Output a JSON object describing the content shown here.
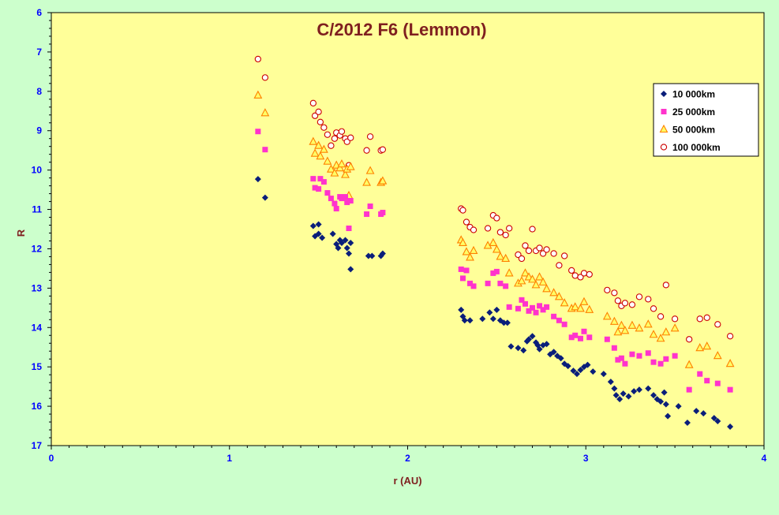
{
  "chart_data": {
    "type": "scatter",
    "title": "C/2012 F6 (Lemmon)",
    "xlabel": "r (AU)",
    "ylabel": "R",
    "xlim": [
      0,
      4
    ],
    "ylim": [
      6,
      17
    ],
    "y_inverted": true,
    "x_ticks": [
      "0",
      "1",
      "2",
      "3",
      "4"
    ],
    "y_ticks": [
      "6",
      "7",
      "8",
      "9",
      "10",
      "11",
      "12",
      "13",
      "14",
      "15",
      "16",
      "17"
    ],
    "grid": false,
    "legend_position": "top-right",
    "colors": {
      "background": "#ccffcc",
      "plot_area": "#ffff99",
      "title": "#7f1f1f",
      "axis_labels": "#7f1f1f",
      "tick_labels": "#0000ff"
    },
    "series": [
      {
        "name": "10 000km",
        "marker": "diamond",
        "color": "#0a1e7a",
        "points": [
          [
            1.16,
            10.23
          ],
          [
            1.2,
            10.7
          ],
          [
            1.47,
            11.42
          ],
          [
            1.48,
            11.68
          ],
          [
            1.5,
            11.38
          ],
          [
            1.5,
            11.62
          ],
          [
            1.52,
            11.72
          ],
          [
            1.58,
            11.62
          ],
          [
            1.6,
            11.88
          ],
          [
            1.61,
            11.98
          ],
          [
            1.62,
            11.78
          ],
          [
            1.63,
            11.85
          ],
          [
            1.65,
            11.78
          ],
          [
            1.66,
            11.98
          ],
          [
            1.67,
            12.12
          ],
          [
            1.68,
            11.85
          ],
          [
            1.68,
            12.52
          ],
          [
            1.78,
            12.18
          ],
          [
            1.8,
            12.18
          ],
          [
            1.85,
            12.18
          ],
          [
            1.86,
            12.12
          ],
          [
            2.3,
            13.55
          ],
          [
            2.31,
            13.72
          ],
          [
            2.32,
            13.82
          ],
          [
            2.35,
            13.82
          ],
          [
            2.42,
            13.78
          ],
          [
            2.46,
            13.62
          ],
          [
            2.48,
            13.78
          ],
          [
            2.5,
            13.55
          ],
          [
            2.52,
            13.82
          ],
          [
            2.54,
            13.88
          ],
          [
            2.56,
            13.88
          ],
          [
            2.58,
            14.48
          ],
          [
            2.62,
            14.52
          ],
          [
            2.65,
            14.58
          ],
          [
            2.67,
            14.35
          ],
          [
            2.68,
            14.3
          ],
          [
            2.7,
            14.22
          ],
          [
            2.72,
            14.38
          ],
          [
            2.73,
            14.45
          ],
          [
            2.74,
            14.55
          ],
          [
            2.76,
            14.45
          ],
          [
            2.78,
            14.42
          ],
          [
            2.8,
            14.68
          ],
          [
            2.82,
            14.62
          ],
          [
            2.84,
            14.72
          ],
          [
            2.86,
            14.78
          ],
          [
            2.88,
            14.92
          ],
          [
            2.9,
            14.98
          ],
          [
            2.93,
            15.1
          ],
          [
            2.95,
            15.18
          ],
          [
            2.97,
            15.08
          ],
          [
            2.99,
            15.0
          ],
          [
            3.01,
            14.95
          ],
          [
            3.04,
            15.12
          ],
          [
            3.1,
            15.18
          ],
          [
            3.14,
            15.38
          ],
          [
            3.16,
            15.55
          ],
          [
            3.17,
            15.72
          ],
          [
            3.19,
            15.82
          ],
          [
            3.21,
            15.68
          ],
          [
            3.24,
            15.75
          ],
          [
            3.27,
            15.62
          ],
          [
            3.3,
            15.58
          ],
          [
            3.35,
            15.55
          ],
          [
            3.38,
            15.72
          ],
          [
            3.4,
            15.82
          ],
          [
            3.42,
            15.88
          ],
          [
            3.44,
            15.65
          ],
          [
            3.45,
            15.95
          ],
          [
            3.46,
            16.25
          ],
          [
            3.52,
            16.0
          ],
          [
            3.57,
            16.42
          ],
          [
            3.62,
            16.12
          ],
          [
            3.66,
            16.18
          ],
          [
            3.72,
            16.3
          ],
          [
            3.74,
            16.38
          ],
          [
            3.81,
            16.52
          ]
        ]
      },
      {
        "name": "25 000km",
        "marker": "square",
        "color": "#ff33cc",
        "points": [
          [
            1.16,
            9.02
          ],
          [
            1.2,
            9.48
          ],
          [
            1.47,
            10.22
          ],
          [
            1.48,
            10.45
          ],
          [
            1.5,
            10.48
          ],
          [
            1.51,
            10.22
          ],
          [
            1.53,
            10.3
          ],
          [
            1.55,
            10.58
          ],
          [
            1.57,
            10.72
          ],
          [
            1.59,
            10.85
          ],
          [
            1.6,
            10.98
          ],
          [
            1.62,
            10.68
          ],
          [
            1.63,
            10.72
          ],
          [
            1.65,
            10.68
          ],
          [
            1.66,
            10.82
          ],
          [
            1.67,
            11.48
          ],
          [
            1.68,
            10.78
          ],
          [
            1.77,
            11.12
          ],
          [
            1.79,
            10.92
          ],
          [
            1.85,
            11.12
          ],
          [
            1.86,
            11.08
          ],
          [
            2.3,
            12.52
          ],
          [
            2.31,
            12.75
          ],
          [
            2.33,
            12.55
          ],
          [
            2.35,
            12.88
          ],
          [
            2.37,
            12.95
          ],
          [
            2.45,
            12.88
          ],
          [
            2.48,
            12.62
          ],
          [
            2.5,
            12.58
          ],
          [
            2.52,
            12.88
          ],
          [
            2.55,
            12.95
          ],
          [
            2.57,
            13.48
          ],
          [
            2.62,
            13.52
          ],
          [
            2.64,
            13.3
          ],
          [
            2.66,
            13.4
          ],
          [
            2.68,
            13.58
          ],
          [
            2.7,
            13.5
          ],
          [
            2.72,
            13.62
          ],
          [
            2.74,
            13.45
          ],
          [
            2.76,
            13.55
          ],
          [
            2.78,
            13.48
          ],
          [
            2.82,
            13.72
          ],
          [
            2.85,
            13.82
          ],
          [
            2.88,
            13.92
          ],
          [
            2.92,
            14.25
          ],
          [
            2.94,
            14.2
          ],
          [
            2.97,
            14.28
          ],
          [
            2.99,
            14.1
          ],
          [
            3.02,
            14.25
          ],
          [
            3.12,
            14.3
          ],
          [
            3.16,
            14.52
          ],
          [
            3.18,
            14.82
          ],
          [
            3.2,
            14.78
          ],
          [
            3.22,
            14.92
          ],
          [
            3.26,
            14.68
          ],
          [
            3.3,
            14.72
          ],
          [
            3.35,
            14.65
          ],
          [
            3.38,
            14.88
          ],
          [
            3.42,
            14.92
          ],
          [
            3.45,
            14.8
          ],
          [
            3.5,
            14.72
          ],
          [
            3.58,
            15.58
          ],
          [
            3.64,
            15.18
          ],
          [
            3.68,
            15.35
          ],
          [
            3.74,
            15.42
          ],
          [
            3.81,
            15.58
          ]
        ]
      },
      {
        "name": "50 000km",
        "marker": "triangle",
        "color": "#ff8000",
        "points": [
          [
            1.16,
            8.1
          ],
          [
            1.2,
            8.55
          ],
          [
            1.47,
            9.28
          ],
          [
            1.48,
            9.58
          ],
          [
            1.5,
            9.38
          ],
          [
            1.51,
            9.65
          ],
          [
            1.53,
            9.48
          ],
          [
            1.55,
            9.78
          ],
          [
            1.57,
            9.98
          ],
          [
            1.59,
            10.08
          ],
          [
            1.6,
            9.88
          ],
          [
            1.62,
            9.95
          ],
          [
            1.63,
            9.85
          ],
          [
            1.65,
            10.12
          ],
          [
            1.66,
            9.98
          ],
          [
            1.67,
            10.65
          ],
          [
            1.68,
            9.92
          ],
          [
            1.77,
            10.32
          ],
          [
            1.79,
            10.02
          ],
          [
            1.85,
            10.32
          ],
          [
            1.86,
            10.28
          ],
          [
            2.3,
            11.78
          ],
          [
            2.31,
            11.85
          ],
          [
            2.33,
            12.08
          ],
          [
            2.35,
            12.22
          ],
          [
            2.37,
            12.05
          ],
          [
            2.45,
            11.92
          ],
          [
            2.48,
            11.85
          ],
          [
            2.5,
            12.02
          ],
          [
            2.52,
            12.2
          ],
          [
            2.55,
            12.25
          ],
          [
            2.57,
            12.62
          ],
          [
            2.62,
            12.88
          ],
          [
            2.64,
            12.82
          ],
          [
            2.66,
            12.62
          ],
          [
            2.68,
            12.72
          ],
          [
            2.7,
            12.78
          ],
          [
            2.72,
            12.92
          ],
          [
            2.74,
            12.72
          ],
          [
            2.76,
            12.85
          ],
          [
            2.78,
            13.02
          ],
          [
            2.82,
            13.12
          ],
          [
            2.85,
            13.22
          ],
          [
            2.88,
            13.38
          ],
          [
            2.92,
            13.52
          ],
          [
            2.94,
            13.48
          ],
          [
            2.97,
            13.52
          ],
          [
            2.99,
            13.35
          ],
          [
            3.02,
            13.55
          ],
          [
            3.12,
            13.72
          ],
          [
            3.16,
            13.85
          ],
          [
            3.18,
            14.12
          ],
          [
            3.2,
            13.95
          ],
          [
            3.22,
            14.08
          ],
          [
            3.26,
            13.95
          ],
          [
            3.3,
            14.02
          ],
          [
            3.35,
            13.92
          ],
          [
            3.38,
            14.18
          ],
          [
            3.42,
            14.28
          ],
          [
            3.45,
            14.12
          ],
          [
            3.5,
            14.02
          ],
          [
            3.58,
            14.95
          ],
          [
            3.64,
            14.52
          ],
          [
            3.68,
            14.48
          ],
          [
            3.74,
            14.72
          ],
          [
            3.81,
            14.92
          ]
        ]
      },
      {
        "name": "100 000km",
        "marker": "circle",
        "color": "#cc0000",
        "points": [
          [
            1.16,
            7.18
          ],
          [
            1.2,
            7.65
          ],
          [
            1.47,
            8.3
          ],
          [
            1.48,
            8.62
          ],
          [
            1.5,
            8.52
          ],
          [
            1.51,
            8.78
          ],
          [
            1.53,
            8.92
          ],
          [
            1.55,
            9.1
          ],
          [
            1.57,
            9.38
          ],
          [
            1.59,
            9.2
          ],
          [
            1.6,
            9.05
          ],
          [
            1.62,
            9.12
          ],
          [
            1.63,
            9.02
          ],
          [
            1.65,
            9.2
          ],
          [
            1.66,
            9.28
          ],
          [
            1.67,
            9.88
          ],
          [
            1.68,
            9.18
          ],
          [
            1.77,
            9.5
          ],
          [
            1.79,
            9.15
          ],
          [
            1.85,
            9.5
          ],
          [
            1.86,
            9.48
          ],
          [
            2.3,
            10.98
          ],
          [
            2.31,
            11.02
          ],
          [
            2.33,
            11.32
          ],
          [
            2.35,
            11.45
          ],
          [
            2.37,
            11.52
          ],
          [
            2.45,
            11.48
          ],
          [
            2.48,
            11.15
          ],
          [
            2.5,
            11.22
          ],
          [
            2.52,
            11.58
          ],
          [
            2.55,
            11.65
          ],
          [
            2.57,
            11.48
          ],
          [
            2.62,
            12.15
          ],
          [
            2.64,
            12.25
          ],
          [
            2.66,
            11.92
          ],
          [
            2.68,
            12.05
          ],
          [
            2.7,
            11.5
          ],
          [
            2.72,
            12.05
          ],
          [
            2.74,
            11.98
          ],
          [
            2.76,
            12.12
          ],
          [
            2.78,
            12.02
          ],
          [
            2.82,
            12.12
          ],
          [
            2.85,
            12.42
          ],
          [
            2.88,
            12.18
          ],
          [
            2.92,
            12.55
          ],
          [
            2.94,
            12.68
          ],
          [
            2.97,
            12.72
          ],
          [
            2.99,
            12.62
          ],
          [
            3.02,
            12.65
          ],
          [
            3.12,
            13.05
          ],
          [
            3.16,
            13.12
          ],
          [
            3.18,
            13.32
          ],
          [
            3.2,
            13.45
          ],
          [
            3.22,
            13.38
          ],
          [
            3.26,
            13.42
          ],
          [
            3.3,
            13.22
          ],
          [
            3.35,
            13.28
          ],
          [
            3.38,
            13.52
          ],
          [
            3.42,
            13.72
          ],
          [
            3.45,
            12.92
          ],
          [
            3.5,
            13.78
          ],
          [
            3.58,
            14.3
          ],
          [
            3.64,
            13.78
          ],
          [
            3.68,
            13.75
          ],
          [
            3.74,
            13.92
          ],
          [
            3.81,
            14.22
          ]
        ]
      }
    ]
  }
}
